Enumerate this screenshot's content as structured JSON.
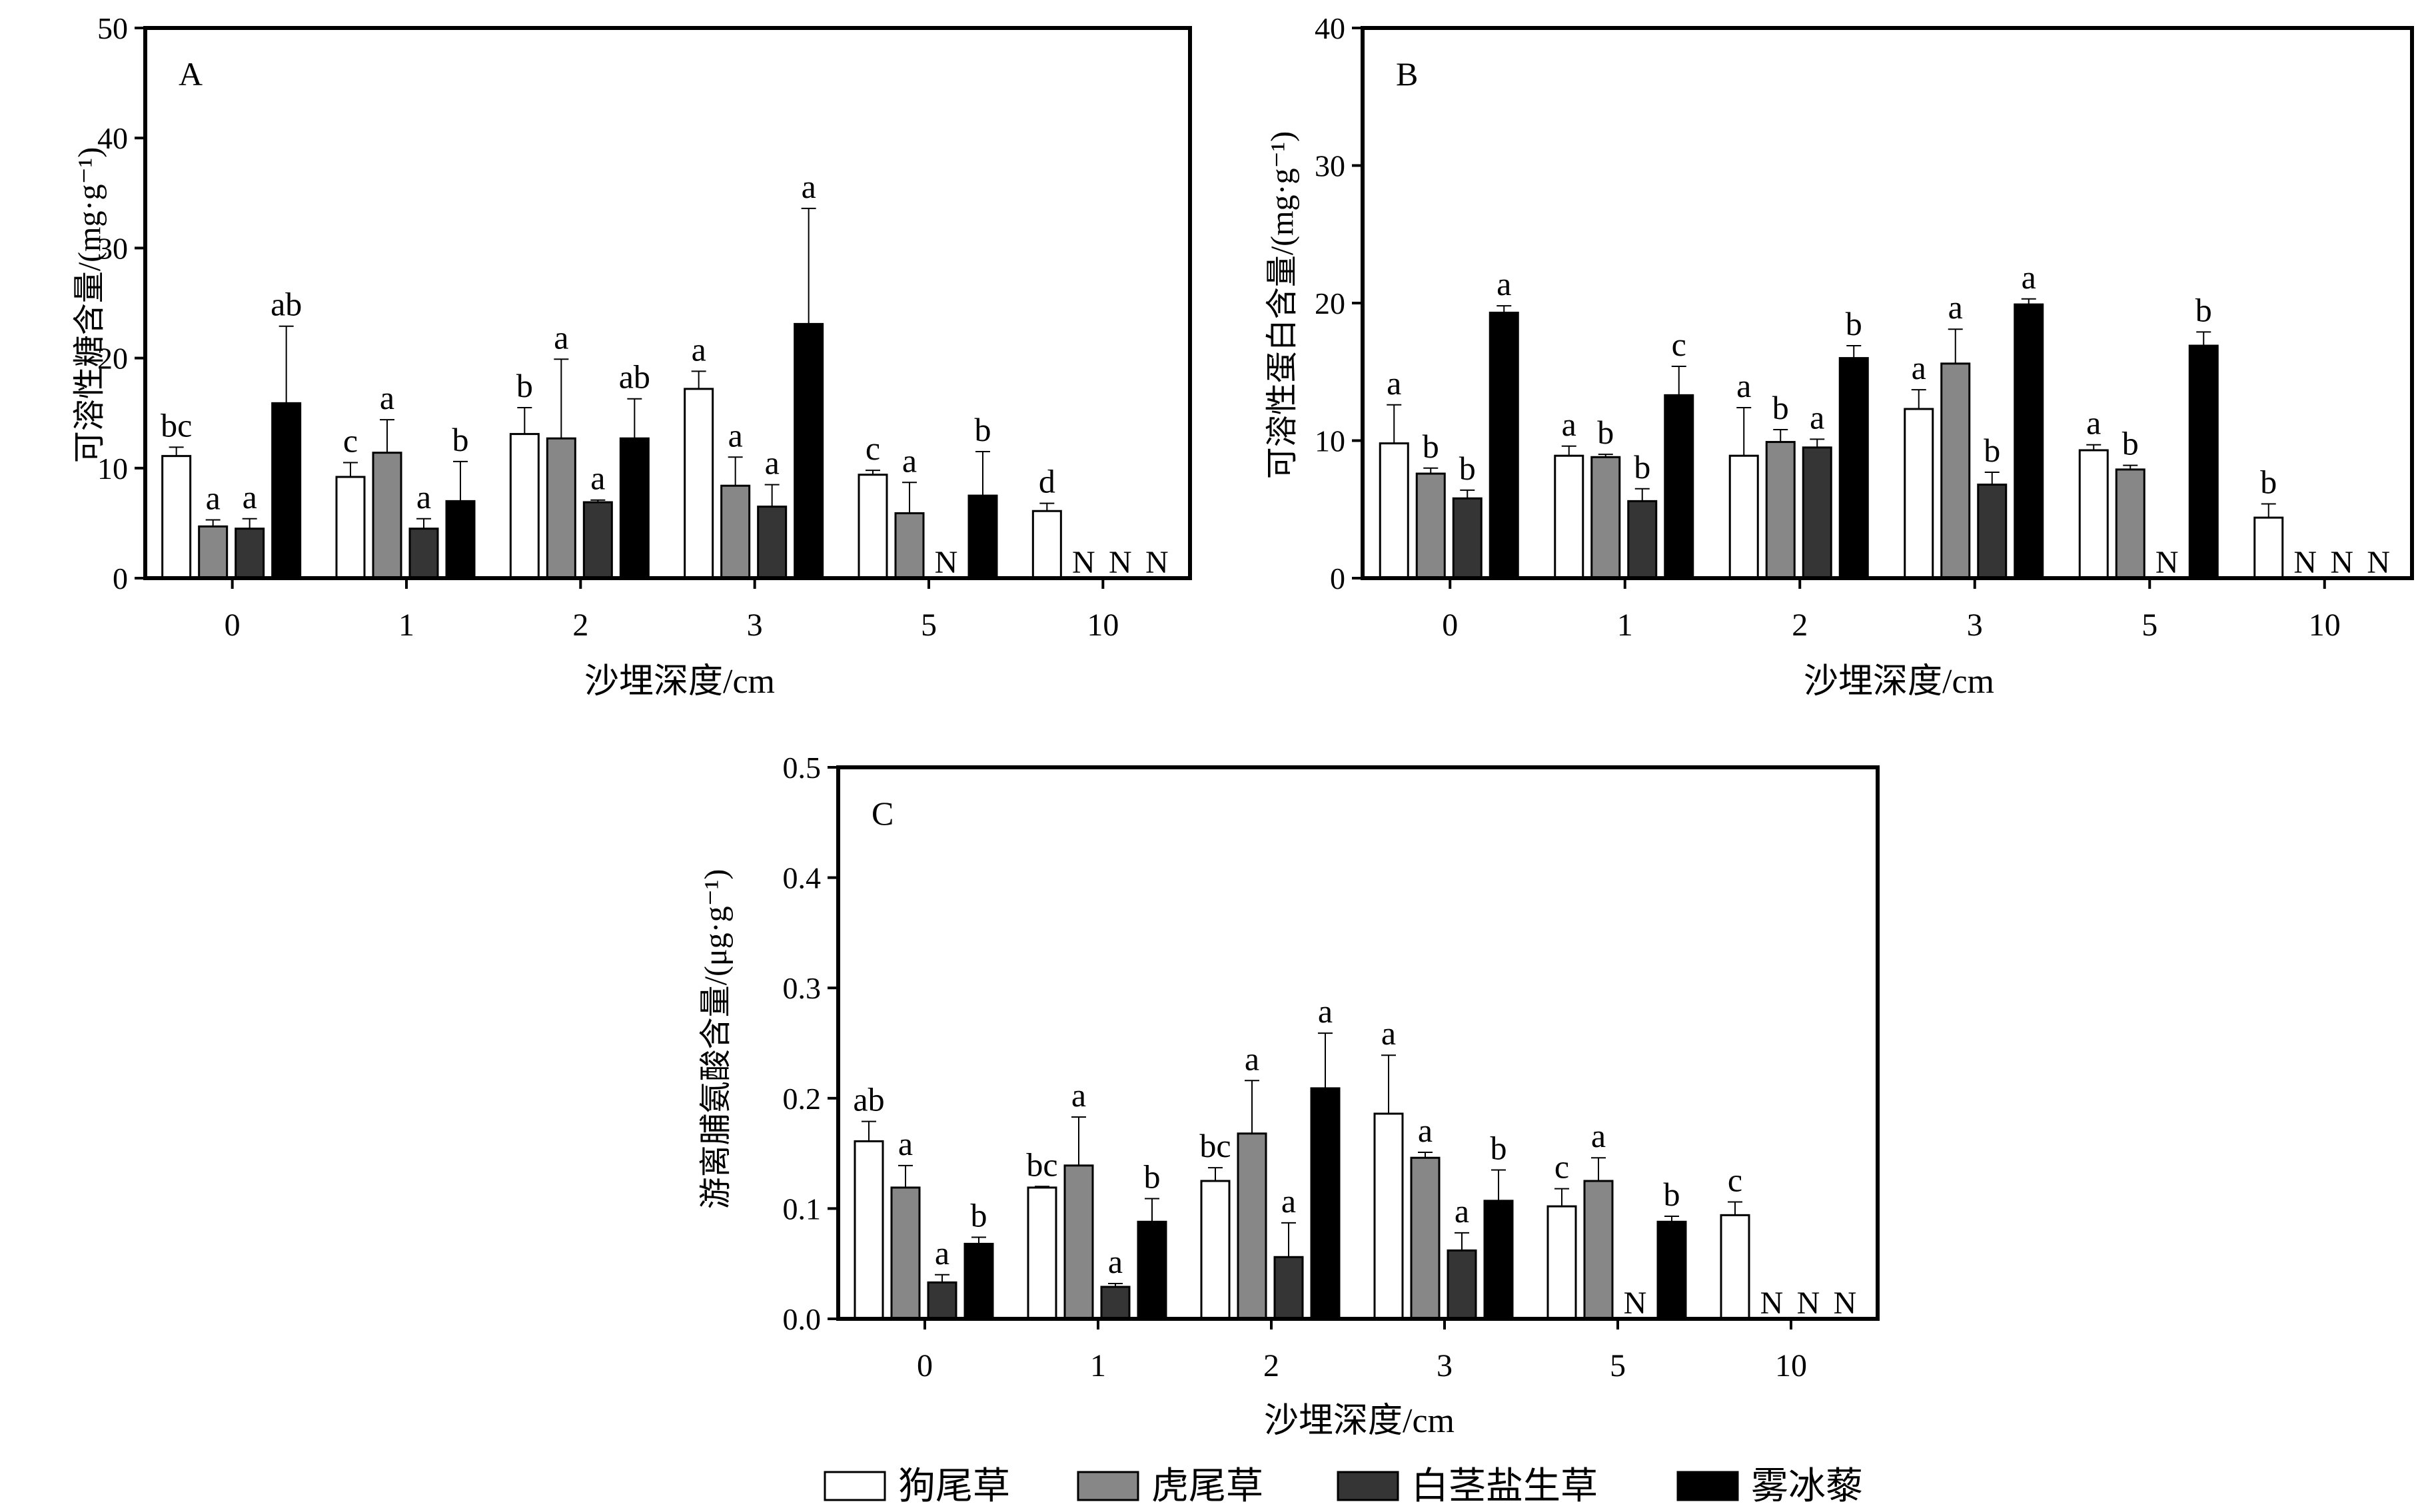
{
  "legend": {
    "items": [
      {
        "label": "狗尾草",
        "fill": "#ffffff"
      },
      {
        "label": "虎尾草",
        "fill": "#878787"
      },
      {
        "label": "白茎盐生草",
        "fill": "#353535"
      },
      {
        "label": "雾冰藜",
        "fill": "#000000"
      }
    ]
  },
  "chart_data": [
    {
      "type": "bar",
      "panel": "A",
      "xlabel": "沙埋深度/cm",
      "ylabel": "可溶性糖含量/(mg·g⁻¹)",
      "ylim": [
        0,
        50
      ],
      "yticks": [
        "0",
        "10",
        "20",
        "30",
        "40",
        "50"
      ],
      "categories": [
        "0",
        "1",
        "2",
        "3",
        "5",
        "10"
      ],
      "series": [
        {
          "name": "狗尾草",
          "values": [
            11.1,
            9.2,
            13.1,
            17.2,
            9.4,
            6.1
          ],
          "errors": [
            0.8,
            1.3,
            2.4,
            1.6,
            0.4,
            0.7
          ],
          "letters": [
            "bc",
            "c",
            "b",
            "a",
            "c",
            "d"
          ]
        },
        {
          "name": "虎尾草",
          "values": [
            4.7,
            11.4,
            12.7,
            8.4,
            5.9,
            null
          ],
          "errors": [
            0.6,
            3.0,
            7.2,
            2.6,
            2.8,
            null
          ],
          "letters": [
            "a",
            "a",
            "a",
            "a",
            "a",
            "N"
          ]
        },
        {
          "name": "白茎盐生草",
          "values": [
            4.5,
            4.5,
            6.9,
            6.5,
            null,
            null
          ],
          "errors": [
            0.9,
            0.9,
            0.2,
            2.0,
            null,
            null
          ],
          "letters": [
            "a",
            "a",
            "a",
            "a",
            "N",
            "N"
          ]
        },
        {
          "name": "雾冰藜",
          "values": [
            15.9,
            7.0,
            12.7,
            23.1,
            7.5,
            null
          ],
          "errors": [
            7.0,
            3.6,
            3.6,
            10.5,
            4.0,
            null
          ],
          "letters": [
            "ab",
            "b",
            "ab",
            "a",
            "b",
            "N"
          ]
        }
      ]
    },
    {
      "type": "bar",
      "panel": "B",
      "xlabel": "沙埋深度/cm",
      "ylabel": "可溶性蛋白含量/(mg·g⁻¹)",
      "ylim": [
        0,
        40
      ],
      "yticks": [
        "0",
        "10",
        "20",
        "30",
        "40"
      ],
      "categories": [
        "0",
        "1",
        "2",
        "3",
        "5",
        "10"
      ],
      "series": [
        {
          "name": "狗尾草",
          "values": [
            9.8,
            8.9,
            8.9,
            12.3,
            9.3,
            4.4
          ],
          "errors": [
            2.8,
            0.7,
            3.5,
            1.4,
            0.4,
            1.0
          ],
          "letters": [
            "a",
            "a",
            "a",
            "a",
            "a",
            "b"
          ]
        },
        {
          "name": "虎尾草",
          "values": [
            7.6,
            8.8,
            9.9,
            15.6,
            7.9,
            null
          ],
          "errors": [
            0.4,
            0.2,
            0.9,
            2.5,
            0.3,
            null
          ],
          "letters": [
            "b",
            "b",
            "b",
            "a",
            "b",
            "N"
          ]
        },
        {
          "name": "白茎盐生草",
          "values": [
            5.8,
            5.6,
            9.5,
            6.8,
            null,
            null
          ],
          "errors": [
            0.6,
            0.9,
            0.6,
            0.9,
            null,
            null
          ],
          "letters": [
            "b",
            "b",
            "a",
            "b",
            "N",
            "N"
          ]
        },
        {
          "name": "雾冰藜",
          "values": [
            19.3,
            13.3,
            16.0,
            19.9,
            16.9,
            null
          ],
          "errors": [
            0.5,
            2.1,
            0.9,
            0.4,
            1.0,
            null
          ],
          "letters": [
            "a",
            "c",
            "b",
            "a",
            "b",
            "N"
          ]
        }
      ]
    },
    {
      "type": "bar",
      "panel": "C",
      "xlabel": "沙埋深度/cm",
      "ylabel": "游离脯氨酸含量/(μg·g⁻¹)",
      "ylim": [
        0,
        0.5
      ],
      "yticks": [
        "0.0",
        "0.1",
        "0.2",
        "0.3",
        "0.4",
        "0.5"
      ],
      "categories": [
        "0",
        "1",
        "2",
        "3",
        "5",
        "10"
      ],
      "series": [
        {
          "name": "狗尾草",
          "values": [
            0.161,
            0.119,
            0.125,
            0.186,
            0.102,
            0.094
          ],
          "errors": [
            0.018,
            0.001,
            0.012,
            0.053,
            0.016,
            0.012
          ],
          "letters": [
            "ab",
            "bc",
            "bc",
            "a",
            "c",
            "c"
          ]
        },
        {
          "name": "虎尾草",
          "values": [
            0.119,
            0.139,
            0.168,
            0.146,
            0.125,
            null
          ],
          "errors": [
            0.02,
            0.044,
            0.048,
            0.005,
            0.021,
            null
          ],
          "letters": [
            "a",
            "a",
            "a",
            "a",
            "a",
            "N"
          ]
        },
        {
          "name": "白茎盐生草",
          "values": [
            0.033,
            0.029,
            0.056,
            0.062,
            null,
            null
          ],
          "errors": [
            0.007,
            0.003,
            0.031,
            0.016,
            null,
            null
          ],
          "letters": [
            "a",
            "a",
            "a",
            "a",
            "N",
            "N"
          ]
        },
        {
          "name": "雾冰藜",
          "values": [
            0.068,
            0.088,
            0.209,
            0.107,
            0.088,
            null
          ],
          "errors": [
            0.006,
            0.021,
            0.05,
            0.028,
            0.005,
            null
          ],
          "letters": [
            "b",
            "b",
            "a",
            "b",
            "b",
            "N"
          ]
        }
      ]
    }
  ]
}
